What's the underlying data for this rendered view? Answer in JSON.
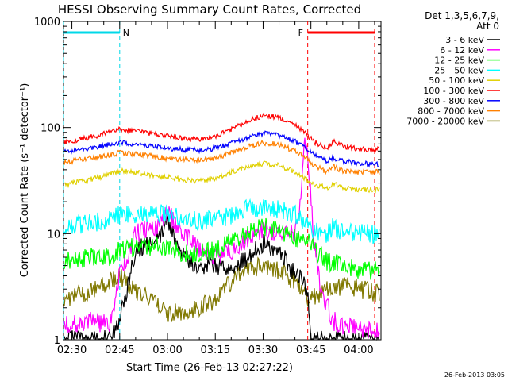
{
  "chart_data": {
    "type": "line",
    "title": "HESSI Observing Summary Count Rates, Corrected",
    "xlabel": "Start Time (26-Feb-13 02:27:22)",
    "ylabel": "Corrected Count Rate (s⁻¹ detector⁻¹)",
    "y_scale": "log",
    "ylim": [
      1,
      1000
    ],
    "xlim": [
      "02:27:22",
      "04:07:00"
    ],
    "x_ticks": [
      "02:30",
      "02:45",
      "03:00",
      "03:15",
      "03:30",
      "03:45",
      "04:00"
    ],
    "y_ticks": [
      "1",
      "10",
      "100",
      "1000"
    ],
    "legend": {
      "position": "top-right",
      "header": [
        "Det 1,3,5,6,7,9,",
        "Att 0"
      ]
    },
    "footer": "26-Feb-2013 03:05",
    "markers": [
      {
        "label": "N",
        "start": "02:27:22",
        "end": "02:45:00",
        "color": "#00d8e8"
      },
      {
        "label": "F",
        "start": "03:44:00",
        "end": "04:05:00",
        "color": "#ff0000"
      }
    ],
    "series": [
      {
        "name": "3 - 6 keV",
        "color": "#000000",
        "x": [
          "02:28",
          "02:35",
          "02:42",
          "02:45",
          "02:50",
          "02:57",
          "03:00",
          "03:05",
          "03:10",
          "03:15",
          "03:20",
          "03:25",
          "03:30",
          "03:35",
          "03:38",
          "03:41",
          "03:44",
          "03:45",
          "03:47",
          "03:50",
          "03:55",
          "04:00",
          "04:05"
        ],
        "values": [
          1,
          1,
          1,
          1.5,
          7,
          9,
          13,
          6,
          5,
          5,
          5,
          6,
          8,
          7,
          5,
          4,
          3,
          1,
          1,
          1,
          1,
          1,
          1
        ]
      },
      {
        "name": "6 - 12 keV",
        "color": "#ff00ff",
        "x": [
          "02:28",
          "02:35",
          "02:42",
          "02:45",
          "02:50",
          "02:57",
          "03:00",
          "03:05",
          "03:10",
          "03:15",
          "03:20",
          "03:25",
          "03:30",
          "03:35",
          "03:40",
          "03:42",
          "03:43",
          "03:44",
          "03:46",
          "03:48",
          "03:52",
          "03:58",
          "04:05"
        ],
        "values": [
          1.4,
          1.5,
          1.4,
          4,
          10,
          12,
          16,
          10,
          7,
          6,
          7,
          9,
          11,
          10,
          10,
          20,
          80,
          60,
          8,
          3,
          1.5,
          1.3,
          1.2
        ]
      },
      {
        "name": "12 - 25 keV",
        "color": "#00ff00",
        "x": [
          "02:28",
          "02:35",
          "02:42",
          "02:45",
          "02:50",
          "02:57",
          "03:00",
          "03:05",
          "03:10",
          "03:15",
          "03:20",
          "03:25",
          "03:30",
          "03:35",
          "03:40",
          "03:44",
          "03:46",
          "03:50",
          "03:55",
          "04:00",
          "04:05"
        ],
        "values": [
          5.5,
          6,
          6,
          7,
          7.5,
          7.5,
          7.5,
          6.5,
          6.5,
          7,
          8.5,
          10,
          11.5,
          11,
          9,
          9,
          7,
          5.5,
          5,
          4.5,
          4.5
        ]
      },
      {
        "name": "25 - 50 keV",
        "color": "#00ffff",
        "x": [
          "02:28",
          "02:35",
          "02:42",
          "02:45",
          "02:50",
          "02:57",
          "03:00",
          "03:05",
          "03:10",
          "03:15",
          "03:20",
          "03:25",
          "03:30",
          "03:35",
          "03:40",
          "03:43",
          "03:45",
          "03:47",
          "03:50",
          "03:52",
          "03:55",
          "04:00",
          "04:05"
        ],
        "values": [
          11.5,
          12.5,
          13.5,
          15,
          15,
          15.5,
          15.5,
          14,
          13,
          13.5,
          15,
          17,
          18,
          17,
          15,
          13,
          11,
          10.5,
          10,
          11.5,
          10.5,
          10,
          10
        ]
      },
      {
        "name": "50 - 100 keV",
        "color": "#e0d000",
        "x": [
          "02:28",
          "02:35",
          "02:42",
          "02:45",
          "02:50",
          "02:57",
          "03:00",
          "03:05",
          "03:10",
          "03:15",
          "03:20",
          "03:25",
          "03:30",
          "03:35",
          "03:40",
          "03:44",
          "03:46",
          "03:48",
          "03:50",
          "03:52",
          "03:55",
          "04:00",
          "04:05"
        ],
        "values": [
          29,
          32,
          36,
          39,
          38,
          35,
          34,
          32,
          31,
          33,
          38,
          43,
          46,
          44,
          38,
          32,
          29,
          28,
          27,
          30,
          27,
          26,
          26
        ]
      },
      {
        "name": "100 - 300 keV",
        "color": "#ff0000",
        "x": [
          "02:28",
          "02:35",
          "02:42",
          "02:45",
          "02:50",
          "02:57",
          "03:00",
          "03:05",
          "03:10",
          "03:15",
          "03:20",
          "03:25",
          "03:30",
          "03:35",
          "03:40",
          "03:44",
          "03:46",
          "03:48",
          "03:50",
          "03:52",
          "03:55",
          "04:00",
          "04:05"
        ],
        "values": [
          72,
          80,
          90,
          96,
          93,
          86,
          83,
          79,
          77,
          82,
          96,
          115,
          130,
          125,
          105,
          85,
          73,
          68,
          63,
          74,
          67,
          63,
          62
        ]
      },
      {
        "name": "300 - 800 keV",
        "color": "#0000ff",
        "x": [
          "02:28",
          "02:35",
          "02:42",
          "02:45",
          "02:50",
          "02:57",
          "03:00",
          "03:05",
          "03:10",
          "03:15",
          "03:20",
          "03:25",
          "03:30",
          "03:35",
          "03:40",
          "03:44",
          "03:46",
          "03:48",
          "03:50",
          "03:52",
          "03:55",
          "04:00",
          "04:05"
        ],
        "values": [
          59,
          64,
          69,
          72,
          70,
          66,
          64,
          62,
          61,
          64,
          71,
          80,
          88,
          84,
          74,
          63,
          55,
          51,
          48,
          52,
          48,
          46,
          45
        ]
      },
      {
        "name": "800 - 7000 keV",
        "color": "#ff8000",
        "x": [
          "02:28",
          "02:35",
          "02:42",
          "02:45",
          "02:50",
          "02:57",
          "03:00",
          "03:05",
          "03:10",
          "03:15",
          "03:20",
          "03:25",
          "03:30",
          "03:35",
          "03:40",
          "03:44",
          "03:46",
          "03:48",
          "03:50",
          "03:52",
          "03:55",
          "04:00",
          "04:05"
        ],
        "values": [
          47,
          51,
          55,
          58,
          56,
          53,
          51,
          50,
          49,
          51,
          58,
          66,
          72,
          69,
          60,
          51,
          44,
          41,
          38,
          43,
          39,
          38,
          38
        ]
      },
      {
        "name": "7000 - 20000 keV",
        "color": "#807800",
        "x": [
          "02:28",
          "02:35",
          "02:42",
          "02:45",
          "02:50",
          "02:57",
          "03:00",
          "03:05",
          "03:10",
          "03:15",
          "03:20",
          "03:25",
          "03:30",
          "03:35",
          "03:40",
          "03:44",
          "03:46",
          "03:50",
          "03:55",
          "04:00",
          "04:05"
        ],
        "values": [
          2.5,
          2.8,
          3.5,
          4,
          3,
          2.2,
          1.8,
          1.8,
          2,
          2.4,
          3.5,
          4.5,
          5,
          4.5,
          3.5,
          2.5,
          2.5,
          3,
          3.2,
          3,
          2.8
        ]
      }
    ]
  }
}
